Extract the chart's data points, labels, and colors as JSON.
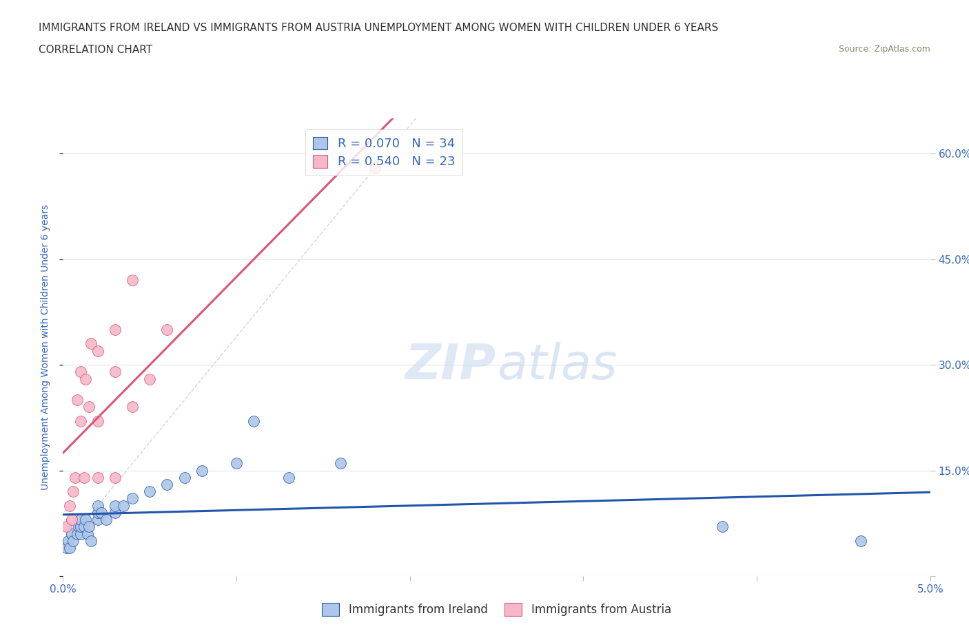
{
  "title_line1": "IMMIGRANTS FROM IRELAND VS IMMIGRANTS FROM AUSTRIA UNEMPLOYMENT AMONG WOMEN WITH CHILDREN UNDER 6 YEARS",
  "title_line2": "CORRELATION CHART",
  "source": "Source: ZipAtlas.com",
  "ylabel": "Unemployment Among Women with Children Under 6 years",
  "xlim": [
    0.0,
    0.05
  ],
  "ylim": [
    0.0,
    0.65
  ],
  "ireland_R": 0.07,
  "ireland_N": 34,
  "austria_R": 0.54,
  "austria_N": 23,
  "ireland_color": "#aec6e8",
  "austria_color": "#f4b8c8",
  "ireland_line_color": "#2255aa",
  "austria_line_color": "#dd5577",
  "diagonal_color": "#cccccc",
  "watermark_zip": "ZIP",
  "watermark_atlas": "atlas",
  "ireland_x": [
    0.0002,
    0.0003,
    0.0004,
    0.0005,
    0.0006,
    0.0008,
    0.0009,
    0.001,
    0.001,
    0.001,
    0.0012,
    0.0013,
    0.0014,
    0.0015,
    0.0016,
    0.002,
    0.002,
    0.002,
    0.0022,
    0.0025,
    0.003,
    0.003,
    0.0035,
    0.004,
    0.005,
    0.006,
    0.007,
    0.008,
    0.01,
    0.011,
    0.013,
    0.016,
    0.038,
    0.046
  ],
  "ireland_y": [
    0.04,
    0.05,
    0.04,
    0.06,
    0.05,
    0.06,
    0.07,
    0.06,
    0.07,
    0.08,
    0.07,
    0.08,
    0.06,
    0.07,
    0.05,
    0.08,
    0.09,
    0.1,
    0.09,
    0.08,
    0.09,
    0.1,
    0.1,
    0.11,
    0.12,
    0.13,
    0.14,
    0.15,
    0.16,
    0.22,
    0.14,
    0.16,
    0.07,
    0.05
  ],
  "austria_x": [
    0.0002,
    0.0004,
    0.0005,
    0.0006,
    0.0007,
    0.0008,
    0.001,
    0.001,
    0.0012,
    0.0013,
    0.0015,
    0.0016,
    0.002,
    0.002,
    0.002,
    0.003,
    0.003,
    0.003,
    0.004,
    0.004,
    0.005,
    0.006,
    0.018
  ],
  "austria_y": [
    0.07,
    0.1,
    0.08,
    0.12,
    0.14,
    0.25,
    0.22,
    0.29,
    0.14,
    0.28,
    0.24,
    0.33,
    0.14,
    0.22,
    0.32,
    0.14,
    0.29,
    0.35,
    0.24,
    0.42,
    0.28,
    0.35,
    0.58
  ],
  "background_color": "#ffffff",
  "grid_color": "#dde5f0",
  "title_color": "#333333",
  "axis_label_color": "#3366bb",
  "tick_label_color": "#3366bb"
}
